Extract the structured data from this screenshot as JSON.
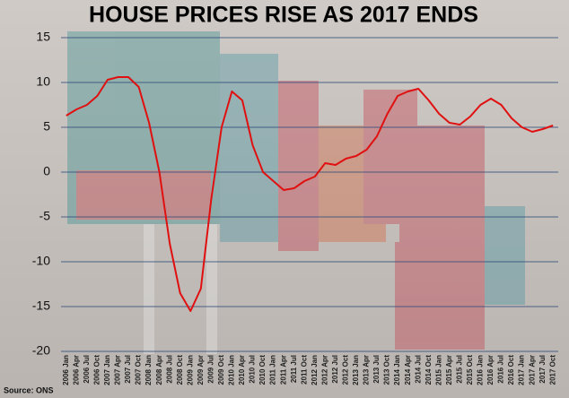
{
  "chart_data": {
    "type": "line",
    "title": "HOUSE PRICES RISE AS 2017 ENDS",
    "source": "Source: ONS",
    "categories": [
      "2006 Jan",
      "2006 Apr",
      "2006 Jul",
      "2006 Oct",
      "2007 Jan",
      "2007 Apr",
      "2007 Jul",
      "2007 Oct",
      "2008 Jan",
      "2008 Apr",
      "2008 Jul",
      "2008 Oct",
      "2009 Jan",
      "2009 Apr",
      "2009 Jul",
      "2009 Oct",
      "2010 Jan",
      "2010 Apr",
      "2010 Jul",
      "2010 Oct",
      "2011 Jan",
      "2011 Apr",
      "2011 Jul",
      "2011 Oct",
      "2012 Jan",
      "2012 Apr",
      "2012 Jul",
      "2012 Oct",
      "2013 Jan",
      "2013 Apr",
      "2013 Jul",
      "2013 Oct",
      "2014 Jan",
      "2014 Apr",
      "2014 Jul",
      "2014 Oct",
      "2015 Jan",
      "2015 Apr",
      "2015 Jul",
      "2015 Oct",
      "2016 Jan",
      "2016 Apr",
      "2016 Jul",
      "2016 Oct",
      "2017 Jan",
      "2017 Apr",
      "2017 Jul",
      "2017 Oct"
    ],
    "values": [
      6.3,
      7,
      7.5,
      8.5,
      10.3,
      10.6,
      10.6,
      9.5,
      5.5,
      0,
      -8,
      -13.5,
      -15.5,
      -13,
      -3,
      5,
      9,
      8,
      3,
      0,
      -1,
      -2,
      -1.8,
      -1,
      -0.5,
      1,
      0.8,
      1.5,
      1.8,
      2.5,
      4,
      6.5,
      8.5,
      9,
      9.3,
      8,
      6.5,
      5.5,
      5.3,
      6.2,
      7.5,
      8.2,
      7.5,
      6,
      5,
      4.5,
      4.8,
      5.2
    ],
    "color": "#e01010",
    "ylim": [
      -20,
      15
    ],
    "yticks": [
      -20,
      -15,
      -10,
      -5,
      0,
      5,
      10,
      15
    ],
    "grid": true
  }
}
